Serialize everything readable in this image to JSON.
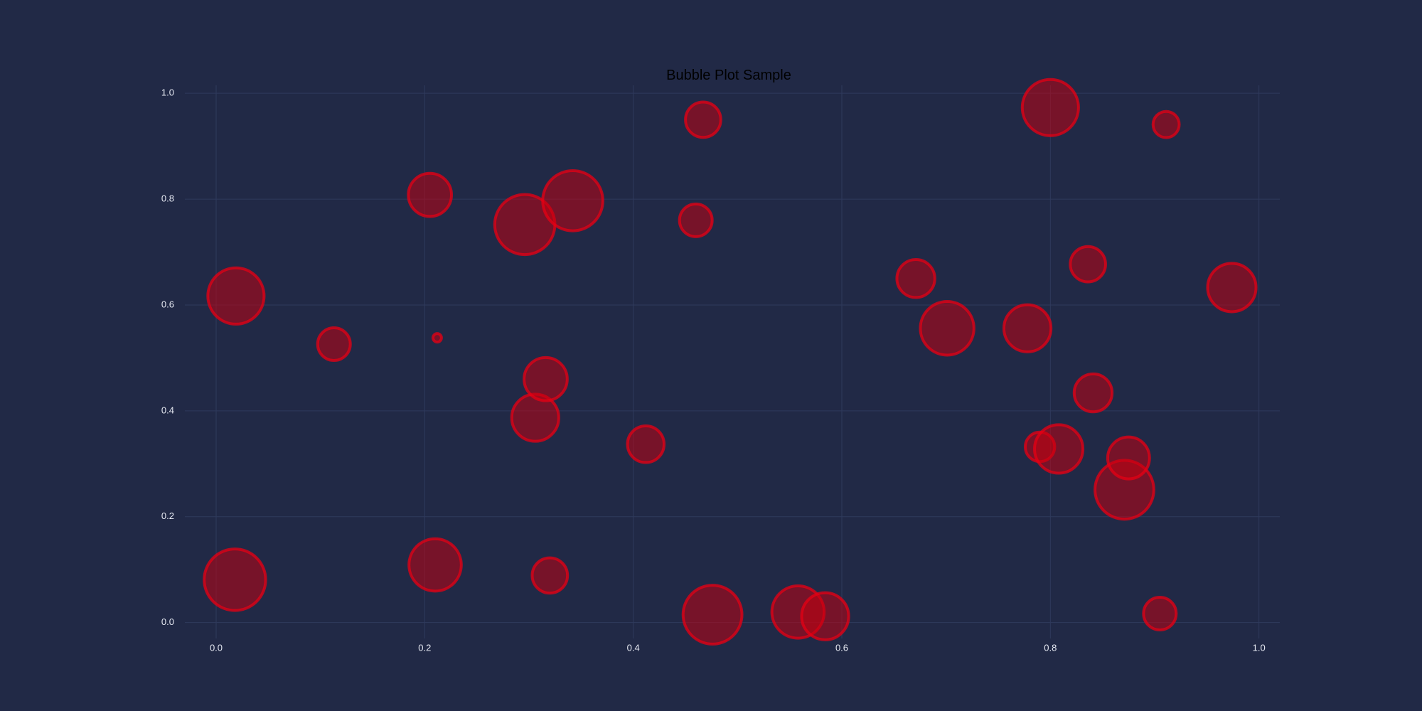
{
  "chart_data": {
    "type": "scatter",
    "title": "Bubble Plot Sample",
    "xlabel": "",
    "ylabel": "",
    "xlim": [
      -0.03,
      1.02
    ],
    "ylim": [
      -0.03,
      1.015
    ],
    "grid": true,
    "x_ticks": [
      0.0,
      0.2,
      0.4,
      0.6,
      0.8,
      1.0
    ],
    "x_tick_labels": [
      "0.0",
      "0.2",
      "0.4",
      "0.6",
      "0.8",
      "1.0"
    ],
    "y_ticks": [
      0.0,
      0.2,
      0.4,
      0.6,
      0.8,
      1.0
    ],
    "y_tick_labels": [
      "0.0",
      "0.2",
      "0.4",
      "0.6",
      "0.8",
      "1.0"
    ],
    "colors": {
      "background": "#212946",
      "grid": "#2f3a5c",
      "bubble_fill": "rgba(200, 0, 16, 0.52)",
      "bubble_edge": "rgba(230, 0, 20, 0.75)",
      "tick_text": "#e6e9f2",
      "title_text": "#000000"
    },
    "points": [
      {
        "x": 0.018,
        "y": 0.081,
        "size": 0.94
      },
      {
        "x": 0.019,
        "y": 0.617,
        "size": 0.86
      },
      {
        "x": 0.113,
        "y": 0.526,
        "size": 0.5
      },
      {
        "x": 0.205,
        "y": 0.808,
        "size": 0.66
      },
      {
        "x": 0.21,
        "y": 0.109,
        "size": 0.8
      },
      {
        "x": 0.212,
        "y": 0.538,
        "size": 0.13
      },
      {
        "x": 0.296,
        "y": 0.752,
        "size": 0.92
      },
      {
        "x": 0.306,
        "y": 0.387,
        "size": 0.72
      },
      {
        "x": 0.316,
        "y": 0.46,
        "size": 0.66
      },
      {
        "x": 0.32,
        "y": 0.089,
        "size": 0.54
      },
      {
        "x": 0.342,
        "y": 0.797,
        "size": 0.92
      },
      {
        "x": 0.412,
        "y": 0.337,
        "size": 0.56
      },
      {
        "x": 0.46,
        "y": 0.76,
        "size": 0.5
      },
      {
        "x": 0.467,
        "y": 0.95,
        "size": 0.54
      },
      {
        "x": 0.476,
        "y": 0.015,
        "size": 0.9
      },
      {
        "x": 0.558,
        "y": 0.02,
        "size": 0.8
      },
      {
        "x": 0.584,
        "y": 0.012,
        "size": 0.72
      },
      {
        "x": 0.671,
        "y": 0.65,
        "size": 0.58
      },
      {
        "x": 0.701,
        "y": 0.556,
        "size": 0.82
      },
      {
        "x": 0.778,
        "y": 0.556,
        "size": 0.72
      },
      {
        "x": 0.79,
        "y": 0.332,
        "size": 0.45
      },
      {
        "x": 0.8,
        "y": 0.973,
        "size": 0.86
      },
      {
        "x": 0.808,
        "y": 0.328,
        "size": 0.74
      },
      {
        "x": 0.836,
        "y": 0.677,
        "size": 0.54
      },
      {
        "x": 0.841,
        "y": 0.434,
        "size": 0.58
      },
      {
        "x": 0.871,
        "y": 0.251,
        "size": 0.9
      },
      {
        "x": 0.875,
        "y": 0.311,
        "size": 0.64
      },
      {
        "x": 0.905,
        "y": 0.017,
        "size": 0.5
      },
      {
        "x": 0.911,
        "y": 0.941,
        "size": 0.4
      },
      {
        "x": 0.974,
        "y": 0.633,
        "size": 0.74
      }
    ]
  }
}
